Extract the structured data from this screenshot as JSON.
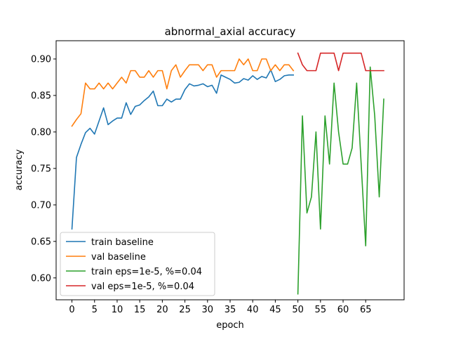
{
  "chart_data": {
    "type": "line",
    "title": "abnormal_axial accuracy",
    "xlabel": "epoch",
    "ylabel": "accuracy",
    "xlim": [
      -3.5,
      73.5
    ],
    "ylim": [
      0.57,
      0.925
    ],
    "xticks": [
      0,
      5,
      10,
      15,
      20,
      25,
      30,
      35,
      40,
      45,
      50,
      55,
      60,
      65
    ],
    "yticks": [
      0.6,
      0.65,
      0.7,
      0.75,
      0.8,
      0.85,
      0.9
    ],
    "ytick_labels": [
      "0.60",
      "0.65",
      "0.70",
      "0.75",
      "0.80",
      "0.85",
      "0.90"
    ],
    "grid": false,
    "legend_position": "lower-left",
    "series": [
      {
        "name": "train baseline",
        "color": "#1f77b4",
        "x": [
          0,
          1,
          2,
          3,
          4,
          5,
          6,
          7,
          8,
          9,
          10,
          11,
          12,
          13,
          14,
          15,
          16,
          17,
          18,
          19,
          20,
          21,
          22,
          23,
          24,
          25,
          26,
          27,
          28,
          29,
          30,
          31,
          32,
          33,
          34,
          35,
          36,
          37,
          38,
          39,
          40,
          41,
          42,
          43,
          44,
          45,
          46,
          47,
          48,
          49
        ],
        "y": [
          0.667,
          0.765,
          0.783,
          0.799,
          0.805,
          0.797,
          0.815,
          0.833,
          0.81,
          0.815,
          0.819,
          0.819,
          0.84,
          0.824,
          0.835,
          0.837,
          0.843,
          0.848,
          0.856,
          0.836,
          0.836,
          0.845,
          0.841,
          0.845,
          0.845,
          0.858,
          0.866,
          0.863,
          0.864,
          0.866,
          0.862,
          0.864,
          0.853,
          0.878,
          0.875,
          0.872,
          0.867,
          0.868,
          0.873,
          0.871,
          0.877,
          0.872,
          0.876,
          0.874,
          0.885,
          0.869,
          0.872,
          0.877,
          0.878,
          0.878
        ]
      },
      {
        "name": "val baseline",
        "color": "#ff7f0e",
        "x": [
          0,
          1,
          2,
          3,
          4,
          5,
          6,
          7,
          8,
          9,
          10,
          11,
          12,
          13,
          14,
          15,
          16,
          17,
          18,
          19,
          20,
          21,
          22,
          23,
          24,
          25,
          26,
          27,
          28,
          29,
          30,
          31,
          32,
          33,
          34,
          35,
          36,
          37,
          38,
          39,
          40,
          41,
          42,
          43,
          44,
          45,
          46,
          47,
          48,
          49
        ],
        "y": [
          0.808,
          0.817,
          0.825,
          0.867,
          0.859,
          0.859,
          0.867,
          0.859,
          0.867,
          0.859,
          0.867,
          0.875,
          0.867,
          0.884,
          0.884,
          0.875,
          0.875,
          0.884,
          0.875,
          0.884,
          0.884,
          0.859,
          0.884,
          0.892,
          0.875,
          0.884,
          0.892,
          0.892,
          0.892,
          0.884,
          0.892,
          0.892,
          0.875,
          0.884,
          0.884,
          0.884,
          0.884,
          0.9,
          0.892,
          0.9,
          0.884,
          0.884,
          0.9,
          0.9,
          0.884,
          0.892,
          0.884,
          0.892,
          0.892,
          0.884
        ]
      },
      {
        "name": "train eps=1e-5, %=0.04",
        "color": "#2ca02c",
        "x": [
          50,
          51,
          52,
          53,
          54,
          55,
          56,
          57,
          58,
          59,
          60,
          61,
          62,
          63,
          64,
          65,
          66,
          67,
          68,
          69
        ],
        "y": [
          0.578,
          0.822,
          0.689,
          0.711,
          0.8,
          0.667,
          0.822,
          0.756,
          0.867,
          0.8,
          0.756,
          0.756,
          0.778,
          0.867,
          0.756,
          0.644,
          0.889,
          0.822,
          0.711,
          0.845
        ]
      },
      {
        "name": "val eps=1e-5, %=0.04",
        "color": "#d62728",
        "x": [
          50,
          51,
          52,
          53,
          54,
          55,
          56,
          57,
          58,
          59,
          60,
          61,
          62,
          63,
          64,
          65,
          66,
          67,
          68,
          69
        ],
        "y": [
          0.908,
          0.892,
          0.884,
          0.884,
          0.884,
          0.908,
          0.908,
          0.908,
          0.908,
          0.884,
          0.908,
          0.908,
          0.908,
          0.908,
          0.908,
          0.884,
          0.884,
          0.884,
          0.884,
          0.884
        ]
      }
    ]
  }
}
